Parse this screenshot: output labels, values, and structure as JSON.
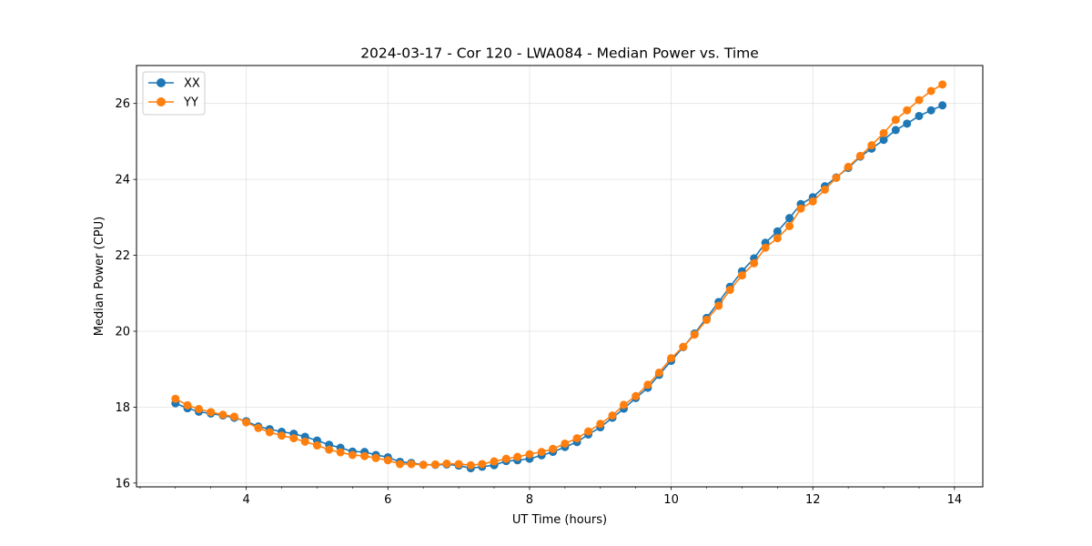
{
  "chart_data": {
    "type": "line",
    "title": "2024-03-17 - Cor 120 - LWA084 - Median Power vs. Time",
    "xlabel": "UT Time (hours)",
    "ylabel": "Median Power (CPU)",
    "xlim": [
      2.45,
      14.4
    ],
    "ylim": [
      15.9,
      27.0
    ],
    "xticks": [
      4,
      6,
      8,
      10,
      12,
      14
    ],
    "yticks": [
      16,
      18,
      20,
      22,
      24,
      26
    ],
    "xtick_labels": [
      "4",
      "6",
      "8",
      "10",
      "12",
      "14"
    ],
    "ytick_labels": [
      "16",
      "18",
      "20",
      "22",
      "24",
      "26"
    ],
    "grid": true,
    "legend_position": "top-left",
    "x": [
      3.0,
      3.17,
      3.33,
      3.5,
      3.67,
      3.83,
      4.0,
      4.17,
      4.33,
      4.5,
      4.67,
      4.83,
      5.0,
      5.17,
      5.33,
      5.5,
      5.67,
      5.83,
      6.0,
      6.17,
      6.33,
      6.5,
      6.67,
      6.83,
      7.0,
      7.17,
      7.33,
      7.5,
      7.67,
      7.83,
      8.0,
      8.17,
      8.33,
      8.5,
      8.67,
      8.83,
      9.0,
      9.17,
      9.33,
      9.5,
      9.67,
      9.83,
      10.0,
      10.17,
      10.33,
      10.5,
      10.67,
      10.83,
      11.0,
      11.17,
      11.33,
      11.5,
      11.67,
      11.83,
      12.0,
      12.17,
      12.33,
      12.5,
      12.67,
      12.83,
      13.0,
      13.17,
      13.33,
      13.5,
      13.67,
      13.83
    ],
    "series": [
      {
        "name": "XX",
        "color": "#1f77b4",
        "values": [
          18.1,
          17.97,
          17.88,
          17.83,
          17.78,
          17.72,
          17.63,
          17.49,
          17.42,
          17.35,
          17.3,
          17.22,
          17.12,
          17.01,
          16.93,
          16.83,
          16.82,
          16.74,
          16.68,
          16.56,
          16.53,
          16.48,
          16.48,
          16.49,
          16.46,
          16.39,
          16.43,
          16.47,
          16.58,
          16.6,
          16.64,
          16.73,
          16.82,
          16.95,
          17.08,
          17.28,
          17.47,
          17.72,
          17.96,
          18.24,
          18.51,
          18.85,
          19.22,
          19.58,
          19.94,
          20.35,
          20.77,
          21.17,
          21.58,
          21.92,
          22.33,
          22.63,
          22.98,
          23.35,
          23.53,
          23.82,
          24.05,
          24.3,
          24.6,
          24.81,
          25.04,
          25.3,
          25.47,
          25.67,
          25.82,
          25.95
        ]
      },
      {
        "name": "YY",
        "color": "#ff7f0e",
        "values": [
          18.22,
          18.05,
          17.95,
          17.87,
          17.8,
          17.75,
          17.6,
          17.45,
          17.34,
          17.25,
          17.18,
          17.09,
          16.99,
          16.88,
          16.81,
          16.74,
          16.71,
          16.66,
          16.6,
          16.5,
          16.5,
          16.48,
          16.49,
          16.51,
          16.5,
          16.47,
          16.5,
          16.57,
          16.64,
          16.69,
          16.76,
          16.82,
          16.9,
          17.04,
          17.18,
          17.36,
          17.56,
          17.78,
          18.06,
          18.29,
          18.59,
          18.91,
          19.29,
          19.59,
          19.91,
          20.3,
          20.67,
          21.09,
          21.47,
          21.79,
          22.2,
          22.45,
          22.77,
          23.23,
          23.42,
          23.73,
          24.04,
          24.33,
          24.62,
          24.9,
          25.22,
          25.57,
          25.82,
          26.09,
          26.33,
          26.5
        ]
      }
    ]
  }
}
